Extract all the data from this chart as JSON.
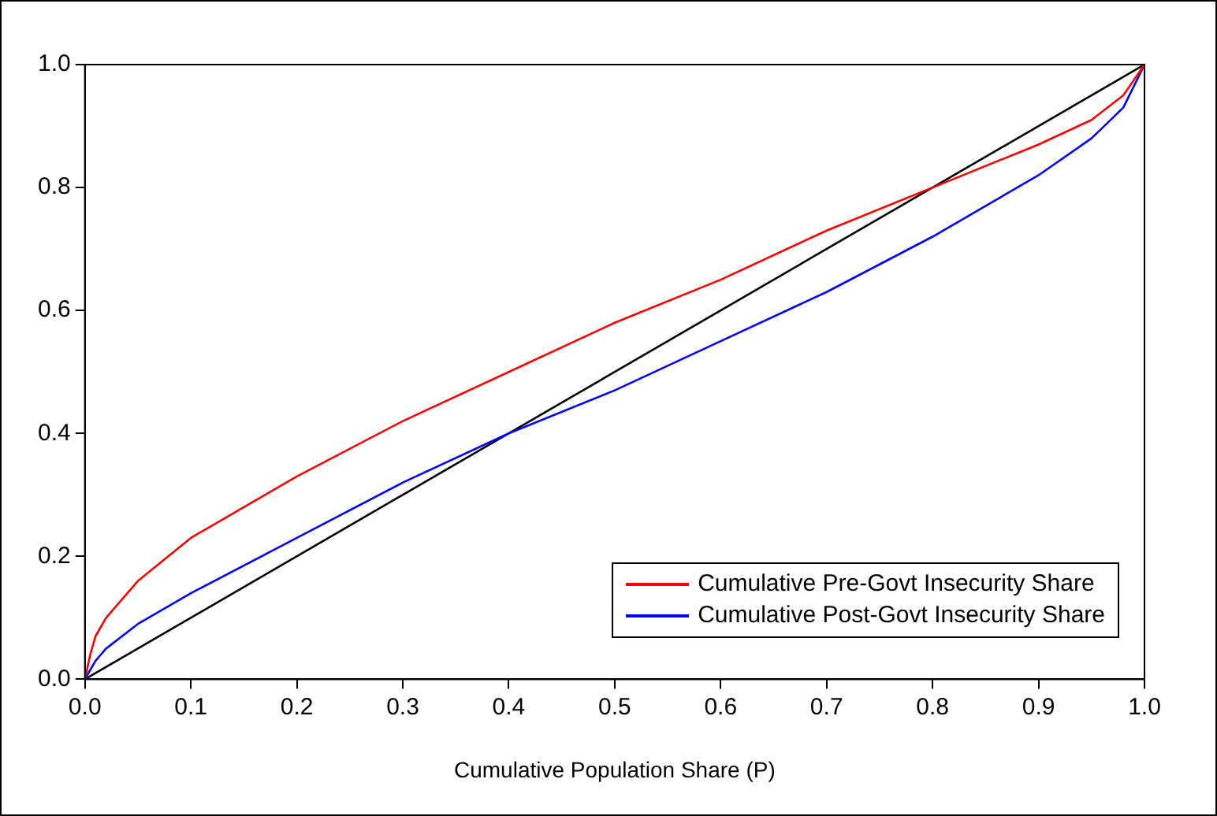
{
  "chart_data": {
    "type": "line",
    "xlabel": "Cumulative Population Share (P)",
    "xlim": [
      0,
      1
    ],
    "xticks": [
      {
        "value": 0,
        "label": "0.0"
      },
      {
        "value": 0.1,
        "label": "0.1"
      },
      {
        "value": 0.2,
        "label": "0.2"
      },
      {
        "value": 0.3,
        "label": "0.3"
      },
      {
        "value": 0.4,
        "label": "0.4"
      },
      {
        "value": 0.5,
        "label": "0.5"
      },
      {
        "value": 0.6,
        "label": "0.6"
      },
      {
        "value": 0.7,
        "label": "0.7"
      },
      {
        "value": 0.8,
        "label": "0.8"
      },
      {
        "value": 0.9,
        "label": "0.9"
      },
      {
        "value": 1,
        "label": "1.0"
      }
    ],
    "ylim": [
      0,
      1
    ],
    "yticks": [
      {
        "value": 0,
        "label": "0.0"
      },
      {
        "value": 0.2,
        "label": "0.2"
      },
      {
        "value": 0.4,
        "label": "0.4"
      },
      {
        "value": 0.6,
        "label": "0.6"
      },
      {
        "value": 0.8,
        "label": "0.8"
      },
      {
        "value": 1,
        "label": "1.0"
      }
    ],
    "grid": false,
    "legend": "bottom right",
    "marker": "none",
    "line_style": "solid",
    "series": [
      {
        "name": "Cumulative Pre-Govt Insecurity Share",
        "color": "#ff0000",
        "x": [
          0,
          0.005,
          0.01,
          0.02,
          0.05,
          0.1,
          0.2,
          0.3,
          0.4,
          0.5,
          0.6,
          0.7,
          0.8,
          0.9,
          0.95,
          0.98,
          1
        ],
        "values": [
          0,
          0.04,
          0.07,
          0.1,
          0.16,
          0.23,
          0.33,
          0.42,
          0.5,
          0.58,
          0.65,
          0.73,
          0.8,
          0.87,
          0.91,
          0.95,
          1
        ]
      },
      {
        "name": "Cumulative Post-Govt Insecurity Share",
        "color": "#0000ff",
        "x": [
          0,
          0.01,
          0.02,
          0.05,
          0.1,
          0.2,
          0.3,
          0.4,
          0.5,
          0.6,
          0.7,
          0.8,
          0.9,
          0.95,
          0.98,
          1
        ],
        "values": [
          0,
          0.03,
          0.05,
          0.09,
          0.14,
          0.23,
          0.32,
          0.4,
          0.47,
          0.55,
          0.63,
          0.72,
          0.82,
          0.88,
          0.93,
          1
        ]
      },
      {
        "color": "#000000",
        "x": [
          0,
          1
        ],
        "values": [
          0,
          1
        ]
      }
    ]
  }
}
